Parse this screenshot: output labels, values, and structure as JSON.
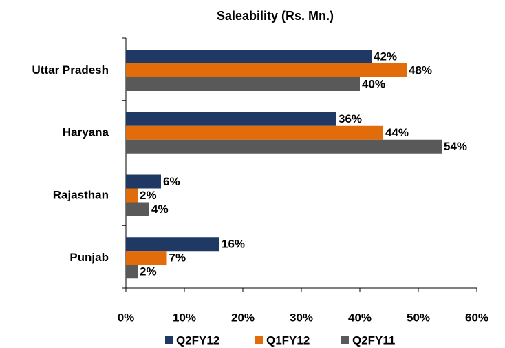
{
  "chart_data": {
    "type": "bar",
    "orientation": "horizontal",
    "title": "Saleability (Rs. Mn.)",
    "categories": [
      "Uttar Pradesh",
      "Haryana",
      "Rajasthan",
      "Punjab"
    ],
    "series": [
      {
        "name": "Q2FY12",
        "color": "#1f3864",
        "values": [
          42,
          36,
          6,
          16
        ],
        "value_labels": [
          "42%",
          "36%",
          "6%",
          "16%"
        ]
      },
      {
        "name": "Q1FY12",
        "color": "#e36c0a",
        "values": [
          48,
          44,
          2,
          7
        ],
        "value_labels": [
          "48%",
          "44%",
          "2%",
          "7%"
        ]
      },
      {
        "name": "Q2FY11",
        "color": "#595959",
        "values": [
          40,
          54,
          4,
          2
        ],
        "value_labels": [
          "40%",
          "54%",
          "4%",
          "2%"
        ]
      }
    ],
    "xlim": [
      0,
      60
    ],
    "xticks": [
      {
        "value": 0,
        "label": "0%"
      },
      {
        "value": 10,
        "label": "10%"
      },
      {
        "value": 20,
        "label": "20%"
      },
      {
        "value": 30,
        "label": "30%"
      },
      {
        "value": 40,
        "label": "40%"
      },
      {
        "value": 50,
        "label": "50%"
      },
      {
        "value": 60,
        "label": "60%"
      }
    ],
    "grid": false,
    "legend": "bottom"
  }
}
